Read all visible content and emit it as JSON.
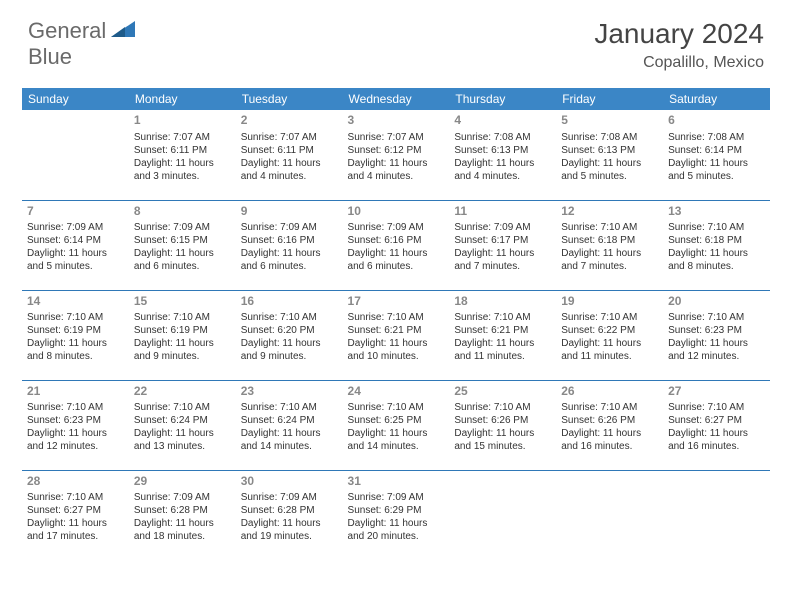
{
  "brand": {
    "name1": "General",
    "name2": "Blue"
  },
  "title": "January 2024",
  "location": "Copalillo, Mexico",
  "colors": {
    "header_bg": "#3b86c6",
    "header_text": "#ffffff",
    "border": "#2f78b7",
    "daynum": "#888888",
    "text": "#333333",
    "brand_gray": "#6a6a6a",
    "brand_blue": "#2f78b7"
  },
  "weekdays": [
    "Sunday",
    "Monday",
    "Tuesday",
    "Wednesday",
    "Thursday",
    "Friday",
    "Saturday"
  ],
  "start_offset": 1,
  "days": [
    {
      "n": 1,
      "sr": "7:07 AM",
      "ss": "6:11 PM",
      "dl": "11 hours and 3 minutes."
    },
    {
      "n": 2,
      "sr": "7:07 AM",
      "ss": "6:11 PM",
      "dl": "11 hours and 4 minutes."
    },
    {
      "n": 3,
      "sr": "7:07 AM",
      "ss": "6:12 PM",
      "dl": "11 hours and 4 minutes."
    },
    {
      "n": 4,
      "sr": "7:08 AM",
      "ss": "6:13 PM",
      "dl": "11 hours and 4 minutes."
    },
    {
      "n": 5,
      "sr": "7:08 AM",
      "ss": "6:13 PM",
      "dl": "11 hours and 5 minutes."
    },
    {
      "n": 6,
      "sr": "7:08 AM",
      "ss": "6:14 PM",
      "dl": "11 hours and 5 minutes."
    },
    {
      "n": 7,
      "sr": "7:09 AM",
      "ss": "6:14 PM",
      "dl": "11 hours and 5 minutes."
    },
    {
      "n": 8,
      "sr": "7:09 AM",
      "ss": "6:15 PM",
      "dl": "11 hours and 6 minutes."
    },
    {
      "n": 9,
      "sr": "7:09 AM",
      "ss": "6:16 PM",
      "dl": "11 hours and 6 minutes."
    },
    {
      "n": 10,
      "sr": "7:09 AM",
      "ss": "6:16 PM",
      "dl": "11 hours and 6 minutes."
    },
    {
      "n": 11,
      "sr": "7:09 AM",
      "ss": "6:17 PM",
      "dl": "11 hours and 7 minutes."
    },
    {
      "n": 12,
      "sr": "7:10 AM",
      "ss": "6:18 PM",
      "dl": "11 hours and 7 minutes."
    },
    {
      "n": 13,
      "sr": "7:10 AM",
      "ss": "6:18 PM",
      "dl": "11 hours and 8 minutes."
    },
    {
      "n": 14,
      "sr": "7:10 AM",
      "ss": "6:19 PM",
      "dl": "11 hours and 8 minutes."
    },
    {
      "n": 15,
      "sr": "7:10 AM",
      "ss": "6:19 PM",
      "dl": "11 hours and 9 minutes."
    },
    {
      "n": 16,
      "sr": "7:10 AM",
      "ss": "6:20 PM",
      "dl": "11 hours and 9 minutes."
    },
    {
      "n": 17,
      "sr": "7:10 AM",
      "ss": "6:21 PM",
      "dl": "11 hours and 10 minutes."
    },
    {
      "n": 18,
      "sr": "7:10 AM",
      "ss": "6:21 PM",
      "dl": "11 hours and 11 minutes."
    },
    {
      "n": 19,
      "sr": "7:10 AM",
      "ss": "6:22 PM",
      "dl": "11 hours and 11 minutes."
    },
    {
      "n": 20,
      "sr": "7:10 AM",
      "ss": "6:23 PM",
      "dl": "11 hours and 12 minutes."
    },
    {
      "n": 21,
      "sr": "7:10 AM",
      "ss": "6:23 PM",
      "dl": "11 hours and 12 minutes."
    },
    {
      "n": 22,
      "sr": "7:10 AM",
      "ss": "6:24 PM",
      "dl": "11 hours and 13 minutes."
    },
    {
      "n": 23,
      "sr": "7:10 AM",
      "ss": "6:24 PM",
      "dl": "11 hours and 14 minutes."
    },
    {
      "n": 24,
      "sr": "7:10 AM",
      "ss": "6:25 PM",
      "dl": "11 hours and 14 minutes."
    },
    {
      "n": 25,
      "sr": "7:10 AM",
      "ss": "6:26 PM",
      "dl": "11 hours and 15 minutes."
    },
    {
      "n": 26,
      "sr": "7:10 AM",
      "ss": "6:26 PM",
      "dl": "11 hours and 16 minutes."
    },
    {
      "n": 27,
      "sr": "7:10 AM",
      "ss": "6:27 PM",
      "dl": "11 hours and 16 minutes."
    },
    {
      "n": 28,
      "sr": "7:10 AM",
      "ss": "6:27 PM",
      "dl": "11 hours and 17 minutes."
    },
    {
      "n": 29,
      "sr": "7:09 AM",
      "ss": "6:28 PM",
      "dl": "11 hours and 18 minutes."
    },
    {
      "n": 30,
      "sr": "7:09 AM",
      "ss": "6:28 PM",
      "dl": "11 hours and 19 minutes."
    },
    {
      "n": 31,
      "sr": "7:09 AM",
      "ss": "6:29 PM",
      "dl": "11 hours and 20 minutes."
    }
  ],
  "labels": {
    "sunrise": "Sunrise:",
    "sunset": "Sunset:",
    "daylight": "Daylight:"
  }
}
